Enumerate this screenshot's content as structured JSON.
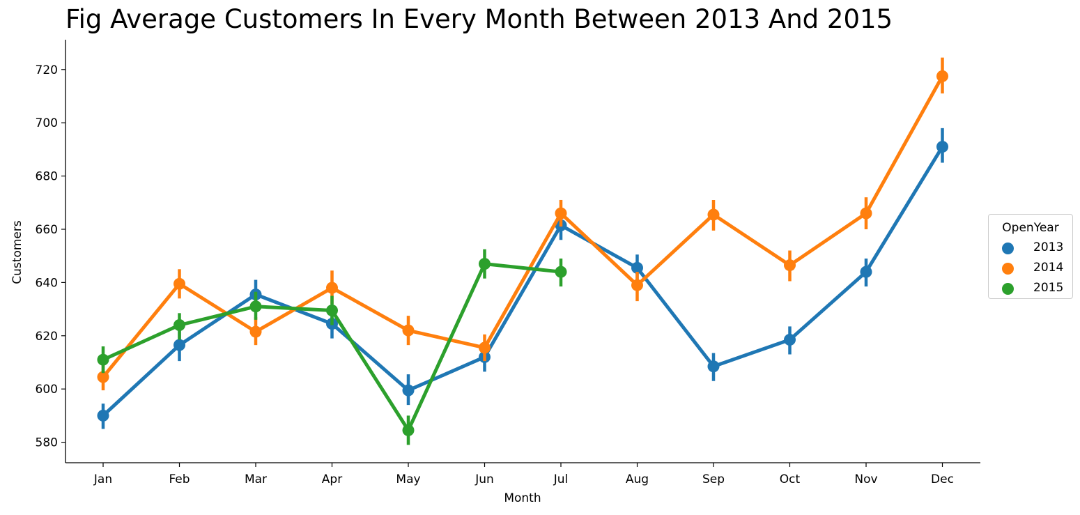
{
  "chart_data": {
    "type": "line",
    "title": "Fig Average Customers In Every Month Between 2013 And 2015",
    "xlabel": "Month",
    "ylabel": "Customers",
    "categories": [
      "Jan",
      "Feb",
      "Mar",
      "Apr",
      "May",
      "Jun",
      "Jul",
      "Aug",
      "Sep",
      "Oct",
      "Nov",
      "Dec"
    ],
    "yticks": [
      580,
      600,
      620,
      640,
      660,
      680,
      700,
      720
    ],
    "ylim": [
      572.3,
      731.2
    ],
    "grid": false,
    "legend_title": "OpenYear",
    "legend_position": "right",
    "series": [
      {
        "name": "2013",
        "color": "#1f77b4",
        "values": [
          590,
          616.5,
          635.5,
          624.5,
          599.5,
          612,
          661.5,
          645.5,
          608.5,
          618.5,
          644,
          691
        ],
        "ci": [
          [
            585,
            594.5
          ],
          [
            610.5,
            622
          ],
          [
            630,
            641
          ],
          [
            619,
            630
          ],
          [
            594,
            605.5
          ],
          [
            606.5,
            617.5
          ],
          [
            656,
            667
          ],
          [
            640.5,
            650.5
          ],
          [
            603,
            613.5
          ],
          [
            613,
            623.5
          ],
          [
            638.5,
            649
          ],
          [
            685,
            698
          ]
        ]
      },
      {
        "name": "2014",
        "color": "#ff7f0e",
        "values": [
          604.5,
          639.5,
          621.5,
          638,
          622,
          615.5,
          666,
          639,
          665.5,
          646.5,
          666,
          717.5
        ],
        "ci": [
          [
            599.5,
            609.5
          ],
          [
            634,
            645
          ],
          [
            616.5,
            627
          ],
          [
            632,
            644.5
          ],
          [
            616.5,
            627.5
          ],
          [
            610.5,
            620.5
          ],
          [
            661,
            671
          ],
          [
            633,
            644
          ],
          [
            659.5,
            671
          ],
          [
            640.5,
            652
          ],
          [
            660,
            672
          ],
          [
            711,
            724.5
          ]
        ]
      },
      {
        "name": "2015",
        "color": "#2ca02c",
        "values": [
          611,
          624,
          631,
          629.5,
          584.5,
          647,
          644,
          null,
          null,
          null,
          null,
          null
        ],
        "ci": [
          [
            606,
            616
          ],
          [
            618.5,
            628.5
          ],
          [
            626,
            636.5
          ],
          [
            624,
            635
          ],
          [
            579,
            590
          ],
          [
            641.5,
            652.5
          ],
          [
            638.5,
            649
          ],
          null,
          null,
          null,
          null,
          null
        ]
      }
    ]
  }
}
